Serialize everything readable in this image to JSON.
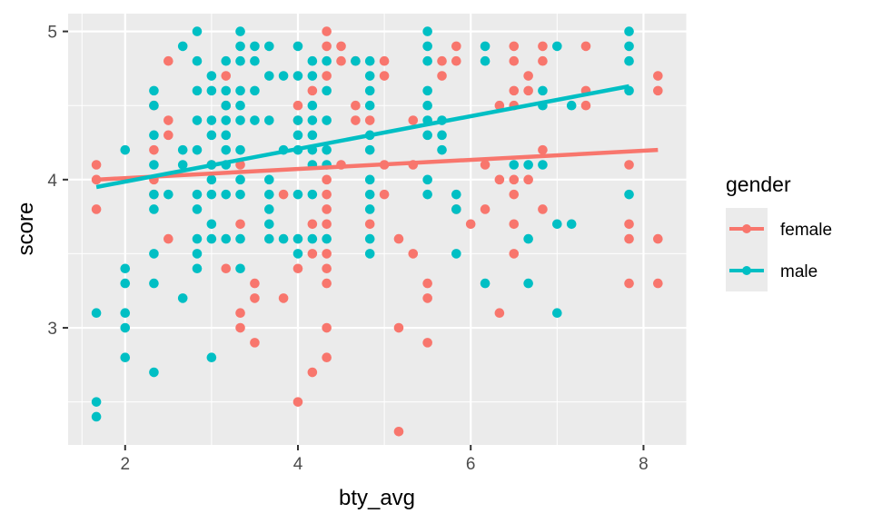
{
  "chart_data": {
    "type": "scatter",
    "xlabel": "bty_avg",
    "ylabel": "score",
    "xlim": [
      1.34,
      8.5
    ],
    "ylim": [
      2.21,
      5.12
    ],
    "xticks": [
      2,
      4,
      6,
      8
    ],
    "yticks": [
      3,
      4,
      5
    ],
    "grid": true,
    "legend": {
      "title": "gender",
      "position": "right"
    },
    "series": [
      {
        "name": "female",
        "color": "#F8766D",
        "points": [
          [
            1.667,
            4.1
          ],
          [
            1.667,
            4.0
          ],
          [
            1.667,
            3.8
          ],
          [
            2.333,
            4.5
          ],
          [
            2.333,
            4.2
          ],
          [
            2.333,
            4.0
          ],
          [
            2.333,
            3.9
          ],
          [
            2.5,
            4.8
          ],
          [
            2.5,
            4.4
          ],
          [
            2.5,
            4.3
          ],
          [
            2.5,
            3.6
          ],
          [
            3,
            4.1
          ],
          [
            3.167,
            4.7
          ],
          [
            3.167,
            4.5
          ],
          [
            3.167,
            3.4
          ],
          [
            3.333,
            4.1
          ],
          [
            3.333,
            3.7
          ],
          [
            3.333,
            3.1
          ],
          [
            3.333,
            3.0
          ],
          [
            3.5,
            3.3
          ],
          [
            3.5,
            3.2
          ],
          [
            3.5,
            2.9
          ],
          [
            3.833,
            3.9
          ],
          [
            3.833,
            3.2
          ],
          [
            4,
            4.5
          ],
          [
            4,
            4.4
          ],
          [
            4,
            3.4
          ],
          [
            4,
            2.5
          ],
          [
            4.167,
            4.6
          ],
          [
            4.167,
            3.7
          ],
          [
            4.167,
            3.5
          ],
          [
            4.167,
            2.7
          ],
          [
            4.333,
            5.0
          ],
          [
            4.333,
            4.9
          ],
          [
            4.333,
            4.7
          ],
          [
            4.333,
            4.0
          ],
          [
            4.333,
            3.9
          ],
          [
            4.333,
            3.8
          ],
          [
            4.333,
            3.7
          ],
          [
            4.333,
            3.5
          ],
          [
            4.333,
            3.4
          ],
          [
            4.333,
            3.3
          ],
          [
            4.333,
            3.0
          ],
          [
            4.333,
            2.8
          ],
          [
            4.5,
            4.9
          ],
          [
            4.5,
            4.8
          ],
          [
            4.5,
            4.1
          ],
          [
            4.667,
            4.8
          ],
          [
            4.667,
            4.5
          ],
          [
            4.667,
            4.4
          ],
          [
            4.833,
            4.4
          ],
          [
            4.833,
            3.7
          ],
          [
            5,
            4.8
          ],
          [
            5,
            4.7
          ],
          [
            5,
            4.1
          ],
          [
            5,
            3.9
          ],
          [
            5.167,
            3.6
          ],
          [
            5.167,
            3.0
          ],
          [
            5.167,
            2.3
          ],
          [
            5.333,
            4.4
          ],
          [
            5.333,
            4.1
          ],
          [
            5.333,
            3.5
          ],
          [
            5.5,
            3.3
          ],
          [
            5.5,
            3.2
          ],
          [
            5.5,
            2.9
          ],
          [
            5.667,
            4.8
          ],
          [
            5.667,
            4.7
          ],
          [
            5.833,
            4.9
          ],
          [
            5.833,
            4.8
          ],
          [
            5.833,
            3.8
          ],
          [
            6,
            3.7
          ],
          [
            6.167,
            4.1
          ],
          [
            6.167,
            3.8
          ],
          [
            6.333,
            4.5
          ],
          [
            6.333,
            4.0
          ],
          [
            6.333,
            3.1
          ],
          [
            6.5,
            4.9
          ],
          [
            6.5,
            4.8
          ],
          [
            6.5,
            4.6
          ],
          [
            6.5,
            4.5
          ],
          [
            6.5,
            4.0
          ],
          [
            6.5,
            3.9
          ],
          [
            6.5,
            3.7
          ],
          [
            6.5,
            3.5
          ],
          [
            6.667,
            4.7
          ],
          [
            6.667,
            4.6
          ],
          [
            6.667,
            4.0
          ],
          [
            6.833,
            4.9
          ],
          [
            6.833,
            4.8
          ],
          [
            6.833,
            4.2
          ],
          [
            6.833,
            3.8
          ],
          [
            7.333,
            4.9
          ],
          [
            7.333,
            4.6
          ],
          [
            7.333,
            4.5
          ],
          [
            7.833,
            4.1
          ],
          [
            7.833,
            3.7
          ],
          [
            7.833,
            3.6
          ],
          [
            7.833,
            3.3
          ],
          [
            8.167,
            4.7
          ],
          [
            8.167,
            4.6
          ],
          [
            8.167,
            3.6
          ],
          [
            8.167,
            3.3
          ]
        ],
        "fit": [
          [
            1.667,
            4.0
          ],
          [
            8.167,
            4.2
          ]
        ]
      },
      {
        "name": "male",
        "color": "#00BFC4",
        "points": [
          [
            1.667,
            3.1
          ],
          [
            1.667,
            2.5
          ],
          [
            1.667,
            2.4
          ],
          [
            2,
            4.2
          ],
          [
            2,
            3.4
          ],
          [
            2,
            3.3
          ],
          [
            2,
            3.1
          ],
          [
            2,
            3.0
          ],
          [
            2,
            2.8
          ],
          [
            2.333,
            4.6
          ],
          [
            2.333,
            4.5
          ],
          [
            2.333,
            4.3
          ],
          [
            2.333,
            4.1
          ],
          [
            2.333,
            3.9
          ],
          [
            2.333,
            3.8
          ],
          [
            2.333,
            3.5
          ],
          [
            2.333,
            3.3
          ],
          [
            2.333,
            2.7
          ],
          [
            2.5,
            3.9
          ],
          [
            2.667,
            4.9
          ],
          [
            2.667,
            4.2
          ],
          [
            2.667,
            4.1
          ],
          [
            2.667,
            3.2
          ],
          [
            2.833,
            5.0
          ],
          [
            2.833,
            4.8
          ],
          [
            2.833,
            4.6
          ],
          [
            2.833,
            4.4
          ],
          [
            2.833,
            4.2
          ],
          [
            2.833,
            3.9
          ],
          [
            2.833,
            3.8
          ],
          [
            2.833,
            3.6
          ],
          [
            2.833,
            3.5
          ],
          [
            2.833,
            3.4
          ],
          [
            3,
            4.7
          ],
          [
            3,
            4.6
          ],
          [
            3,
            4.4
          ],
          [
            3,
            4.3
          ],
          [
            3,
            4.1
          ],
          [
            3,
            4.0
          ],
          [
            3,
            3.9
          ],
          [
            3,
            3.7
          ],
          [
            3,
            3.6
          ],
          [
            3,
            2.8
          ],
          [
            3.167,
            4.8
          ],
          [
            3.167,
            4.6
          ],
          [
            3.167,
            4.5
          ],
          [
            3.167,
            4.4
          ],
          [
            3.167,
            4.3
          ],
          [
            3.167,
            4.2
          ],
          [
            3.167,
            4.1
          ],
          [
            3.167,
            3.9
          ],
          [
            3.167,
            3.6
          ],
          [
            3.333,
            5.0
          ],
          [
            3.333,
            4.9
          ],
          [
            3.333,
            4.8
          ],
          [
            3.333,
            4.6
          ],
          [
            3.333,
            4.5
          ],
          [
            3.333,
            4.4
          ],
          [
            3.333,
            4.2
          ],
          [
            3.333,
            4.0
          ],
          [
            3.333,
            3.9
          ],
          [
            3.333,
            3.6
          ],
          [
            3.333,
            3.4
          ],
          [
            3.5,
            4.9
          ],
          [
            3.5,
            4.8
          ],
          [
            3.5,
            4.6
          ],
          [
            3.5,
            4.4
          ],
          [
            3.667,
            4.9
          ],
          [
            3.667,
            4.7
          ],
          [
            3.667,
            4.4
          ],
          [
            3.667,
            4.0
          ],
          [
            3.667,
            3.9
          ],
          [
            3.667,
            3.8
          ],
          [
            3.667,
            3.7
          ],
          [
            3.667,
            3.6
          ],
          [
            3.833,
            4.7
          ],
          [
            3.833,
            4.2
          ],
          [
            3.833,
            3.6
          ],
          [
            4,
            4.9
          ],
          [
            4,
            4.7
          ],
          [
            4,
            4.4
          ],
          [
            4,
            4.3
          ],
          [
            4,
            4.2
          ],
          [
            4,
            3.9
          ],
          [
            4,
            3.6
          ],
          [
            4,
            3.5
          ],
          [
            4.167,
            4.8
          ],
          [
            4.167,
            4.7
          ],
          [
            4.167,
            4.5
          ],
          [
            4.167,
            4.4
          ],
          [
            4.167,
            4.3
          ],
          [
            4.167,
            4.2
          ],
          [
            4.167,
            4.1
          ],
          [
            4.167,
            3.9
          ],
          [
            4.167,
            3.6
          ],
          [
            4.333,
            4.8
          ],
          [
            4.333,
            4.6
          ],
          [
            4.333,
            4.4
          ],
          [
            4.333,
            4.2
          ],
          [
            4.333,
            4.1
          ],
          [
            4.333,
            3.6
          ],
          [
            4.667,
            4.8
          ],
          [
            4.833,
            4.8
          ],
          [
            4.833,
            4.7
          ],
          [
            4.833,
            4.6
          ],
          [
            4.833,
            4.5
          ],
          [
            4.833,
            4.3
          ],
          [
            4.833,
            4.2
          ],
          [
            4.833,
            4.0
          ],
          [
            4.833,
            3.9
          ],
          [
            4.833,
            3.8
          ],
          [
            4.833,
            3.6
          ],
          [
            4.833,
            3.5
          ],
          [
            5.5,
            5.0
          ],
          [
            5.5,
            4.9
          ],
          [
            5.5,
            4.8
          ],
          [
            5.5,
            4.6
          ],
          [
            5.5,
            4.5
          ],
          [
            5.5,
            4.4
          ],
          [
            5.5,
            4.3
          ],
          [
            5.5,
            4.0
          ],
          [
            5.5,
            3.9
          ],
          [
            5.667,
            4.4
          ],
          [
            5.667,
            4.3
          ],
          [
            5.667,
            4.2
          ],
          [
            5.833,
            3.9
          ],
          [
            5.833,
            3.8
          ],
          [
            5.833,
            3.5
          ],
          [
            6.167,
            4.9
          ],
          [
            6.167,
            4.8
          ],
          [
            6.167,
            3.3
          ],
          [
            6.5,
            4.1
          ],
          [
            6.667,
            4.1
          ],
          [
            6.667,
            3.6
          ],
          [
            6.667,
            3.3
          ],
          [
            6.833,
            4.6
          ],
          [
            6.833,
            4.5
          ],
          [
            6.833,
            4.1
          ],
          [
            7,
            4.9
          ],
          [
            7,
            3.7
          ],
          [
            7,
            3.1
          ],
          [
            7.167,
            4.5
          ],
          [
            7.167,
            3.7
          ],
          [
            7.833,
            5.0
          ],
          [
            7.833,
            4.9
          ],
          [
            7.833,
            4.8
          ],
          [
            7.833,
            4.6
          ],
          [
            7.833,
            3.9
          ]
        ],
        "fit": [
          [
            1.667,
            3.95
          ],
          [
            7.833,
            4.63
          ]
        ]
      }
    ]
  }
}
